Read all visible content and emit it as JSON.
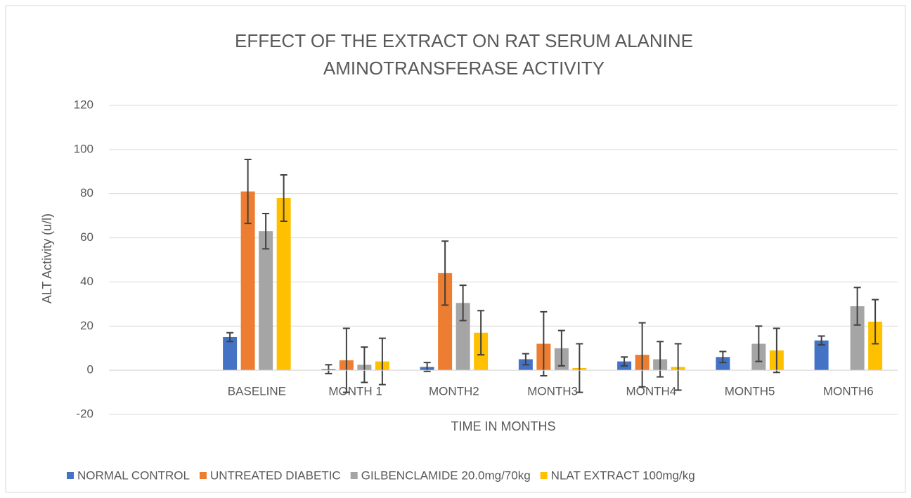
{
  "chart_data": {
    "type": "bar",
    "title": [
      "EFFECT OF THE EXTRACT ON RAT SERUM ALANINE",
      "AMINOTRANSFERASE ACTIVITY"
    ],
    "xlabel": "TIME IN MONTHS",
    "ylabel": "ALT Activity (u/l)",
    "categories": [
      null,
      "BASELINE",
      "MONTH 1",
      "MONTH2",
      "MONTH3",
      "MONTH4",
      "MONTH5",
      "MONTH6"
    ],
    "series": [
      {
        "name": "NORMAL CONTROL",
        "color": "#4472c4",
        "values": [
          null,
          15,
          0.5,
          1.5,
          5,
          4,
          6,
          13.5
        ],
        "errors": [
          null,
          2,
          2,
          2,
          2.5,
          2,
          2.5,
          2
        ]
      },
      {
        "name": "UNTREATED DIABETIC",
        "color": "#ed7d31",
        "values": [
          null,
          81,
          4.5,
          44,
          12,
          7,
          null,
          null
        ],
        "errors": [
          null,
          14.5,
          14.5,
          14.5,
          14.5,
          14.5,
          null,
          null
        ]
      },
      {
        "name": "GILBENCLAMIDE 20.0mg/70kg",
        "color": "#a5a5a5",
        "values": [
          null,
          63,
          2.5,
          30.5,
          10,
          5,
          12,
          29
        ],
        "errors": [
          null,
          8,
          8,
          8,
          8,
          8,
          8,
          8.5
        ]
      },
      {
        "name": "NLAT EXTRACT 100mg/kg",
        "color": "#ffc000",
        "values": [
          null,
          78,
          4,
          17,
          1,
          1.5,
          9,
          22
        ],
        "errors": [
          null,
          10.5,
          10.5,
          10,
          11,
          10.5,
          10,
          10
        ]
      }
    ],
    "ylim": [
      -20,
      120
    ],
    "yticks": [
      -20,
      0,
      20,
      40,
      60,
      80,
      100,
      120
    ],
    "grid": true,
    "legend": "bottom"
  }
}
